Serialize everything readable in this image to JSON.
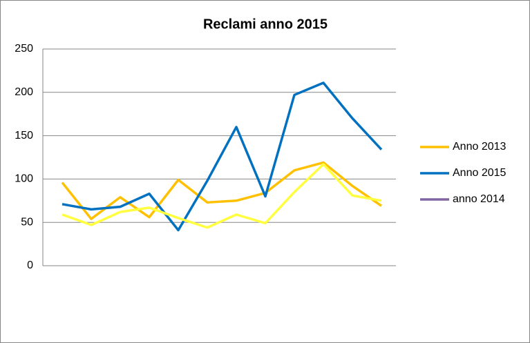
{
  "chart_data": {
    "type": "line",
    "title": "Reclami anno 2015",
    "categories": [
      null,
      null,
      null,
      null,
      null,
      null,
      null,
      null,
      null,
      null,
      null,
      null
    ],
    "series": [
      {
        "name": "Anno 2013",
        "color": "#ffc000",
        "values": [
          96,
          54,
          79,
          56,
          99,
          73,
          75,
          84,
          110,
          119,
          92,
          69
        ]
      },
      {
        "name": "Anno 2015",
        "color": "#0070c0",
        "values": [
          71,
          65,
          68,
          83,
          41,
          98,
          160,
          80,
          197,
          211,
          170,
          134
        ]
      },
      {
        "name": "anno 2014",
        "color": "#ffff40",
        "legend_color": "#8064a2",
        "values": [
          59,
          47,
          62,
          67,
          55,
          44,
          59,
          49,
          85,
          117,
          81,
          75
        ]
      }
    ],
    "ylim": [
      0,
      250
    ],
    "yticks": [
      0,
      50,
      100,
      150,
      200,
      250
    ],
    "grid": true,
    "legend": "right"
  }
}
